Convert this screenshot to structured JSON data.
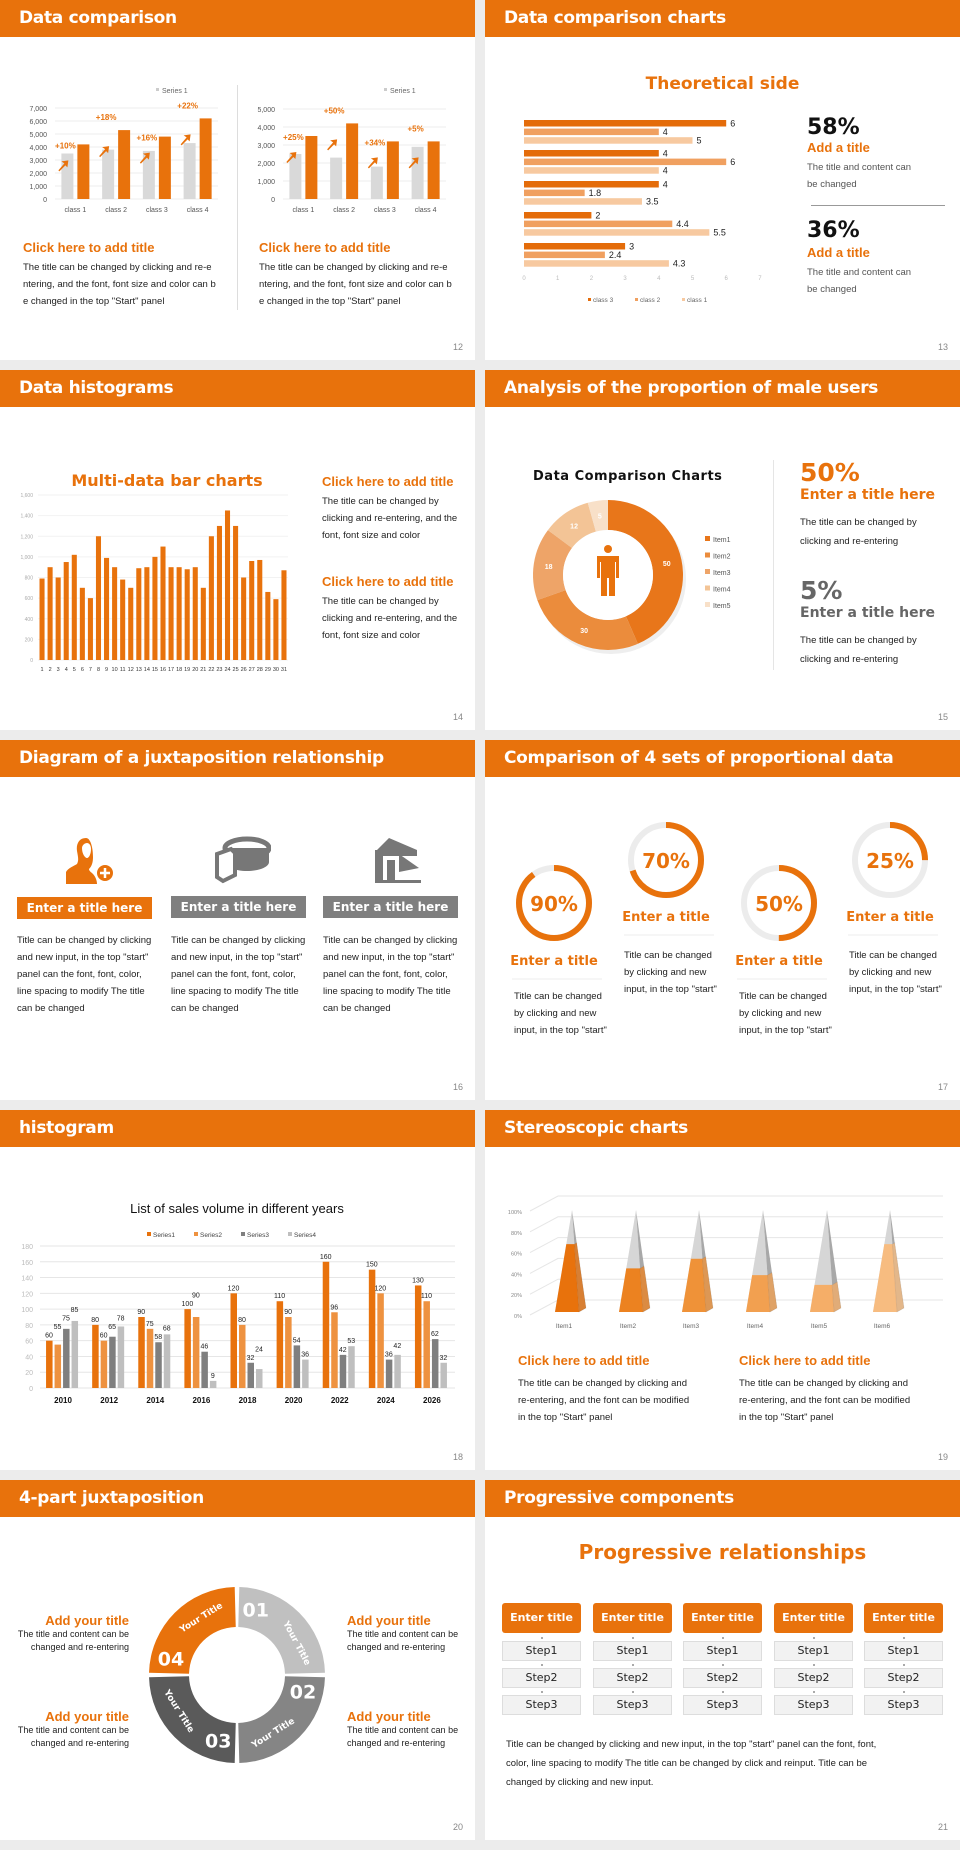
{
  "colors": {
    "accent": "#e8720c",
    "gray": "#808080",
    "light_gray": "#d9d9d9"
  },
  "s12": {
    "title": "Data comparison",
    "page": "12",
    "legend": "Series 1",
    "left": {
      "heading": "Click here to add title",
      "body": [
        "The title can be changed by clicking and re-e",
        "ntering, and the font, font size and color can b",
        "e changed in the top \"Start\" panel"
      ]
    },
    "right": {
      "heading": "Click here to add title",
      "body": [
        "The title can be changed by clicking and re-e",
        "ntering, and the font, font size and color can b",
        "e changed in the top \"Start\" panel"
      ]
    }
  },
  "s13": {
    "title": "Data comparison charts",
    "page": "13",
    "chart_title": "Theoretical side",
    "stats": [
      {
        "value": "58%",
        "heading": "Add a title",
        "body": [
          "The title and content can",
          "be changed"
        ]
      },
      {
        "value": "36%",
        "heading": "Add a title",
        "body": [
          "The title and content can",
          "be changed"
        ]
      }
    ]
  },
  "s14": {
    "title": "Data histograms",
    "page": "14",
    "chart_title": "Multi-data bar charts",
    "blocks": [
      {
        "heading": "Click here to add title",
        "body": [
          "The title can be changed by",
          "clicking and re-entering, and the",
          "font, font size and color"
        ]
      },
      {
        "heading": "Click here to add title",
        "body": [
          "The title can be changed by",
          "clicking and re-entering, and the",
          "font, font size and color"
        ]
      }
    ]
  },
  "s15": {
    "title": "Analysis of the proportion of male users",
    "page": "15",
    "chart_title": "Data Comparison Charts",
    "stats": [
      {
        "value": "50%",
        "heading": "Enter a title here",
        "body": [
          "The title can be changed by",
          "clicking and re-entering"
        ]
      },
      {
        "value": "5%",
        "heading": "Enter a title here",
        "body": [
          "The title can be changed by",
          "clicking and re-entering"
        ]
      }
    ]
  },
  "s16": {
    "title": "Diagram of a juxtaposition relationship",
    "page": "16",
    "items": [
      {
        "icon": "add-user-icon",
        "label": "Enter a title here",
        "body": [
          "Title can be changed by clicking",
          "and new input, in the top \"start\"",
          "panel can the font, font, color,",
          "line spacing to modify The title",
          "can be changed"
        ]
      },
      {
        "icon": "pie-chart-3d-icon",
        "label": "Enter a title here",
        "body": [
          "Title can be changed by clicking",
          "and new input, in the top \"start\"",
          "panel can the font, font, color,",
          "line spacing to modify The title",
          "can be changed"
        ]
      },
      {
        "icon": "store-icon",
        "label": "Enter a title here",
        "body": [
          "Title can be changed by clicking",
          "and new input, in the top \"start\"",
          "panel can the font, font, color,",
          "line spacing to modify The title",
          "can be changed"
        ]
      }
    ]
  },
  "s17": {
    "title": "Comparison of 4 sets of proportional data",
    "page": "17",
    "items": [
      {
        "value": "90%",
        "percent": 90,
        "heading": "Enter a title",
        "body": [
          "Title can be changed",
          "by clicking and new",
          "input, in the top \"start\""
        ]
      },
      {
        "value": "70%",
        "percent": 70,
        "heading": "Enter a title",
        "body": [
          "Title can be changed",
          "by clicking and new",
          "input, in the top \"start\""
        ]
      },
      {
        "value": "50%",
        "percent": 50,
        "heading": "Enter a title",
        "body": [
          "Title can be changed",
          "by clicking and new",
          "input, in the top \"start\""
        ]
      },
      {
        "value": "25%",
        "percent": 25,
        "heading": "Enter a title",
        "body": [
          "Title can be changed",
          "by clicking and new",
          "input, in the top \"start\""
        ]
      }
    ]
  },
  "s18": {
    "title": "histogram",
    "page": "18"
  },
  "s19": {
    "title": "Stereoscopic charts",
    "page": "19",
    "blocks": [
      {
        "heading": "Click here to add title",
        "body": [
          "The title can be changed by clicking and",
          "re-entering, and the font can be modified",
          "in the top \"Start\" panel"
        ]
      },
      {
        "heading": "Click here to add title",
        "body": [
          "The title can be changed by clicking and",
          "re-entering, and the font can be modified",
          "in the top \"Start\" panel"
        ]
      }
    ]
  },
  "s20": {
    "title": "4-part juxtaposition",
    "page": "20",
    "segments": [
      {
        "num": "01",
        "label": "Your Title"
      },
      {
        "num": "02",
        "label": "Your Title"
      },
      {
        "num": "03",
        "label": "Your Title"
      },
      {
        "num": "04",
        "label": "Your Title"
      }
    ],
    "blocks": [
      {
        "heading": "Add your title",
        "body": [
          "The title and content can be",
          "changed and re-entering"
        ]
      },
      {
        "heading": "Add your title",
        "body": [
          "The title and content can be",
          "changed and re-entering"
        ]
      },
      {
        "heading": "Add your title",
        "body": [
          "The title and content can be",
          "changed and re-entering"
        ]
      },
      {
        "heading": "Add your title",
        "body": [
          "The title and content can be",
          "changed and re-entering"
        ]
      }
    ]
  },
  "s21": {
    "title": "Progressive components",
    "page": "21",
    "heading": "Progressive relationships",
    "columns": [
      {
        "title": "Enter title",
        "steps": [
          "Step1",
          "Step2",
          "Step3"
        ]
      },
      {
        "title": "Enter title",
        "steps": [
          "Step1",
          "Step2",
          "Step3"
        ]
      },
      {
        "title": "Enter title",
        "steps": [
          "Step1",
          "Step2",
          "Step3"
        ]
      },
      {
        "title": "Enter title",
        "steps": [
          "Step1",
          "Step2",
          "Step3"
        ]
      },
      {
        "title": "Enter title",
        "steps": [
          "Step1",
          "Step2",
          "Step3"
        ]
      }
    ],
    "body": [
      "Title can be changed by clicking and new input, in the top \"start\" panel can the font, font,",
      "color, line spacing to modify The title can be changed by click and reinput. Title can be",
      "changed by clicking and new input."
    ]
  },
  "chart_data": [
    {
      "id": "s12-left",
      "type": "bar",
      "categories": [
        "class 1",
        "class 2",
        "class 3",
        "class 4"
      ],
      "series": [
        {
          "values": [
            3500,
            3800,
            3700,
            4300
          ],
          "color": "#d9d9d9"
        },
        {
          "name": "Series 1",
          "values": [
            4200,
            5300,
            4800,
            6200
          ],
          "color": "#e8720c"
        }
      ],
      "annotations": [
        "+10%",
        "+18%",
        "+16%",
        "+22%"
      ],
      "ylim": [
        0,
        7000
      ],
      "yticks": [
        "0",
        "1,000",
        "2,000",
        "3,000",
        "4,000",
        "5,000",
        "6,000",
        "7,000"
      ],
      "grid": true,
      "legend": "top-right"
    },
    {
      "id": "s12-right",
      "type": "bar",
      "categories": [
        "class 1",
        "class 2",
        "class 3",
        "class 4"
      ],
      "series": [
        {
          "values": [
            2500,
            2300,
            1800,
            2900
          ],
          "color": "#d9d9d9"
        },
        {
          "name": "Series 1",
          "values": [
            3500,
            4200,
            3200,
            3200
          ],
          "color": "#e8720c"
        }
      ],
      "annotations": [
        "+25%",
        "+50%",
        "+34%",
        "+5%"
      ],
      "ylim": [
        0,
        5000
      ],
      "yticks": [
        "0",
        "1,000",
        "2,000",
        "3,000",
        "4,000",
        "5,000"
      ],
      "grid": true,
      "legend": "top-right"
    },
    {
      "id": "s13",
      "type": "bar",
      "orientation": "horizontal",
      "title": "Theoretical side",
      "series": [
        {
          "name": "class 3",
          "values": [
            6,
            4,
            4,
            2,
            3
          ],
          "color": "#e46c0a"
        },
        {
          "name": "class 2",
          "values": [
            4,
            6,
            1.8,
            4.4,
            2.4
          ],
          "color": "#f0a060"
        },
        {
          "name": "class 1",
          "values": [
            5,
            4,
            3.5,
            5.5,
            4.3
          ],
          "color": "#f7c9a0"
        }
      ],
      "xlim": [
        0,
        7
      ],
      "xticks": [
        "0",
        "1",
        "2",
        "3",
        "4",
        "5",
        "6",
        "7"
      ],
      "legend": "bottom"
    },
    {
      "id": "s14",
      "type": "bar",
      "title": "Multi-data bar charts",
      "categories": [
        "1",
        "2",
        "3",
        "4",
        "5",
        "6",
        "7",
        "8",
        "9",
        "10",
        "11",
        "12",
        "13",
        "14",
        "15",
        "16",
        "17",
        "18",
        "19",
        "20",
        "21",
        "22",
        "23",
        "24",
        "25",
        "26",
        "27",
        "28",
        "29",
        "30",
        "31"
      ],
      "values": [
        790,
        900,
        800,
        950,
        1020,
        700,
        600,
        1200,
        990,
        900,
        780,
        700,
        890,
        900,
        1000,
        1100,
        900,
        900,
        880,
        900,
        700,
        1200,
        1300,
        1450,
        1300,
        800,
        960,
        970,
        660,
        590,
        870
      ],
      "ylim": [
        0,
        1600
      ],
      "yticks": [
        "0",
        "200",
        "400",
        "600",
        "800",
        "1,000",
        "1,200",
        "1,400",
        "1,600"
      ],
      "grid": true
    },
    {
      "id": "s15",
      "type": "pie",
      "variant": "donut",
      "title": "Data Comparison Charts",
      "categories": [
        "Item1",
        "Item2",
        "Item3",
        "Item4",
        "Item5"
      ],
      "values": [
        50,
        30,
        18,
        12,
        5
      ],
      "colors": [
        "#e8761a",
        "#eb8c3c",
        "#eea468",
        "#f3c496",
        "#f8e0c8"
      ],
      "legend": "right"
    },
    {
      "id": "s18",
      "type": "bar",
      "title": "List of sales volume in different years",
      "categories": [
        "2010",
        "2012",
        "2014",
        "2016",
        "2018",
        "2020",
        "2022",
        "2024",
        "2026"
      ],
      "series": [
        {
          "name": "Series1",
          "values": [
            60,
            80,
            90,
            100,
            120,
            110,
            160,
            150,
            130
          ],
          "color": "#e8720c"
        },
        {
          "name": "Series2",
          "values": [
            55,
            60,
            75,
            90,
            80,
            90,
            96,
            120,
            110
          ],
          "color": "#ee9240"
        },
        {
          "name": "Series3",
          "values": [
            75,
            65,
            58,
            46,
            32,
            54,
            42,
            36,
            62
          ],
          "color": "#7f7f7f"
        },
        {
          "name": "Series4",
          "values": [
            85,
            78,
            68,
            9,
            24,
            36,
            53,
            42,
            32
          ],
          "color": "#bfbfbf"
        }
      ],
      "ylim": [
        0,
        180
      ],
      "yticks": [
        "0",
        "20",
        "40",
        "60",
        "80",
        "100",
        "120",
        "140",
        "160",
        "180"
      ],
      "grid": true,
      "legend": "top"
    },
    {
      "id": "s19",
      "type": "bar",
      "variant": "3d-pyramid",
      "categories": [
        "Item1",
        "Item2",
        "Item3",
        "Item4",
        "Item5",
        "Item6"
      ],
      "values": [
        70,
        45,
        55,
        38,
        28,
        70
      ],
      "colors": [
        "#e8720c",
        "#ec8220",
        "#ef9238",
        "#f2a050",
        "#f5ae68",
        "#f7bc80"
      ],
      "ylim": [
        0,
        100
      ],
      "yticks": [
        "0%",
        "20%",
        "40%",
        "60%",
        "80%",
        "100%"
      ],
      "grid": true
    }
  ]
}
